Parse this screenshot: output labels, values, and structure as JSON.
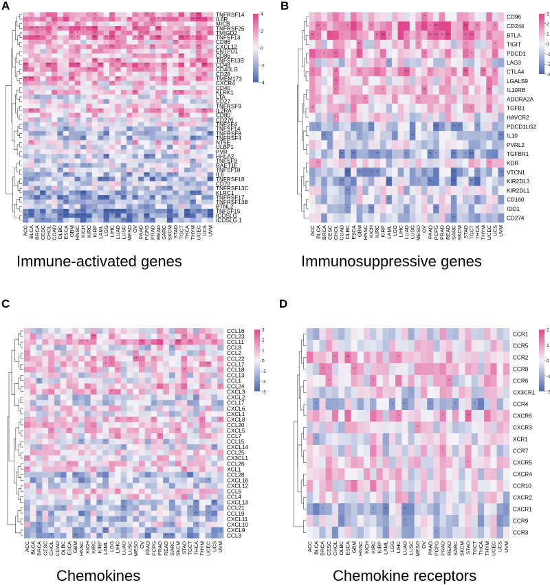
{
  "colors": {
    "low": "#4a66b0",
    "mid": "#f3f3f7",
    "high": "#e1458d",
    "line": "#555555"
  },
  "chart_data": [
    {
      "type": "heatmap",
      "panel": "A",
      "title": "Immune-activated genes",
      "rows": [
        "TNFRSF14",
        "IL6R",
        "MICB",
        "TNFRSF25",
        "TMIGD2",
        "TNFSF13",
        "CD86",
        "CXCL12",
        "ENTPD1",
        "CD86",
        "TNFSF13B",
        "CD48",
        "CD40LG",
        "CD28",
        "TMEM173",
        "CXCR4",
        "CD40",
        "KLRK1",
        "LTA",
        "CD27",
        "TNFRSF9",
        "IL2RA",
        "CD80",
        "CD276",
        "TNFSF4",
        "TNFSF14",
        "TNFRSF8",
        "TNFRSF4",
        "NT5E",
        "ULBP1",
        "PVR",
        "HHLA2",
        "TNFSF9",
        "RAET1E",
        "TNFSF18",
        "IL6",
        "TNFRSF18",
        "CD70",
        "TNFRSF13C",
        "KLRC1",
        "TNFRSF17",
        "TNFRSF13B",
        "BTNL2",
        "TNFSF15",
        "ICOSLG",
        "ICOSLG.1"
      ],
      "columns": [
        "ACC",
        "BLCA",
        "BRCA",
        "CESC",
        "CHOL",
        "COAD",
        "DLBC",
        "ESCA",
        "GBM",
        "HNSC",
        "KICH",
        "KIRC",
        "KIRP",
        "LAML",
        "LGG",
        "LIHC",
        "LUAD",
        "LUSC",
        "MESO",
        "OV",
        "PAAD",
        "PCPG",
        "PRAD",
        "READ",
        "SARC",
        "SKCM",
        "STAD",
        "TGCT",
        "THCA",
        "THYM",
        "UCEC",
        "UCS",
        "UVM"
      ],
      "color_range": [
        -4,
        4
      ],
      "colorbar_ticks": [
        "4",
        "2",
        "0",
        "-2",
        "-4"
      ],
      "seed": 11,
      "bias": 0.9
    },
    {
      "type": "heatmap",
      "panel": "B",
      "title": "Immunosuppressive genes",
      "rows": [
        "CD96",
        "CD244",
        "BTLA",
        "TIGIT",
        "PDCD1",
        "LAG3",
        "CTLA4",
        "LGALS9",
        "IL10RB",
        "ADORA2A",
        "TGFB1",
        "HAVCR2",
        "PDCD1LG2",
        "IL10",
        "PVRL2",
        "TGFBR1",
        "KDR",
        "VTCN1",
        "KIR2DL3",
        "KIR2DL1",
        "CD160",
        "IDO1",
        "CD274"
      ],
      "columns": [
        "ACC",
        "BLCA",
        "BRCA",
        "CESC",
        "CHOL",
        "COAD",
        "DLBC",
        "ESCA",
        "GBM",
        "HNSC",
        "KICH",
        "KIRC",
        "KIRP",
        "LAML",
        "LGG",
        "LIHC",
        "LUAD",
        "LUSC",
        "MESO",
        "OV",
        "PAAD",
        "PCPG",
        "PRAD",
        "READ",
        "SARC",
        "SKCM",
        "STAD",
        "TGCT",
        "THCA",
        "THYM",
        "UCEC",
        "UCS",
        "UVM"
      ],
      "color_range": [
        -3,
        3
      ],
      "colorbar_ticks": [
        "3",
        "2",
        "1",
        "0",
        "-1",
        "-2",
        "-3"
      ],
      "seed": 23,
      "bias": 0.6
    },
    {
      "type": "heatmap",
      "panel": "C",
      "title": "Chemokines",
      "rows": [
        "CCL16",
        "CCL23",
        "CCL11",
        "CCL8",
        "CCL2",
        "CCL22",
        "CCL17",
        "CCL18",
        "CCL13",
        "CCL1",
        "CCL24",
        "CXCL3",
        "CXCL2",
        "CCL17",
        "CXCL6",
        "CXCL1",
        "CXCL8",
        "CCL20",
        "CXCL5",
        "CCL7",
        "CCL15",
        "CXCL14",
        "CCL25",
        "CX3CL1",
        "CCL26",
        "XCL1",
        "CCL28",
        "CXCL16",
        "CXCL12",
        "CCL5",
        "CCL4",
        "CXCL13",
        "CCL21",
        "CCL19",
        "CXCL11",
        "CXCL10",
        "CXCL9",
        "CCL3"
      ],
      "columns": [
        "ACC",
        "BLCA",
        "BRCA",
        "CESC",
        "CHOL",
        "COAD",
        "DLBC",
        "ESCA",
        "GBM",
        "HNSC",
        "KICH",
        "KIRC",
        "KIRP",
        "LAML",
        "LGG",
        "LIHC",
        "LUAD",
        "LUSC",
        "MESO",
        "OV",
        "PAAD",
        "PCPG",
        "PRAD",
        "READ",
        "SARC",
        "SKCM",
        "STAD",
        "TGCT",
        "THCA",
        "THYM",
        "UCEC",
        "UCS",
        "UVM"
      ],
      "color_range": [
        -3,
        3
      ],
      "colorbar_ticks": [
        "3",
        "2",
        "1",
        "0",
        "-1",
        "-2",
        "-3"
      ],
      "seed": 37,
      "bias": 0.3
    },
    {
      "type": "heatmap",
      "panel": "D",
      "title": "Chemokine receptors",
      "rows": [
        "CCR1",
        "CCR5",
        "CCR2",
        "CCR8",
        "CCR6",
        "CX3CR1",
        "CCR4",
        "CXCR6",
        "CXCR3",
        "XCR1",
        "CCR7",
        "CXCR5",
        "CXCR4",
        "CCR10",
        "CXCR2",
        "CXCR1",
        "CCR9",
        "CCR3"
      ],
      "columns": [
        "ACC",
        "BLCA",
        "BRCA",
        "CESC",
        "CHOL",
        "DLBC",
        "ESCA",
        "GBM",
        "HNSC",
        "KICH",
        "KIRC",
        "KIRP",
        "LAML",
        "LGG",
        "LIHC",
        "LUAD",
        "LUSC",
        "MESO",
        "OV",
        "PAAD",
        "PCPG",
        "PRAD",
        "READ",
        "SARC",
        "SKCM",
        "STAD",
        "TGCT",
        "THCA",
        "THYM",
        "UCEC",
        "UCS",
        "UVM"
      ],
      "color_range": [
        -2,
        2
      ],
      "colorbar_ticks": [
        "2",
        "1",
        "0",
        "-1",
        "-2"
      ],
      "seed": 53,
      "bias": 0.2
    }
  ]
}
